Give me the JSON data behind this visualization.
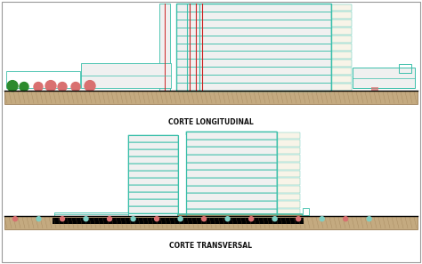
{
  "bg_color": "#f5f4f1",
  "border_color": "#999999",
  "title1": "CORTE LONGITUDINAL",
  "title2": "CORTE TRANSVERSAL",
  "title_fontsize": 5.5,
  "title_color": "#111111",
  "outer_bg": "#ffffff",
  "teal": "#3bbfaa",
  "light_teal": "#7ecfc4",
  "pink": "#d97070",
  "light_pink": "#f0b0a0",
  "red": "#cc2222",
  "green_tree": "#2d8a2d",
  "dark_green": "#1a5a1a",
  "brown": "#8B6914",
  "ground_color": "#c4aa80",
  "dark_ground": "#8a6a40",
  "window_color": "#c8e8e4",
  "wall_color": "#f0f0f0",
  "wall_color2": "#e4e4e4",
  "black": "#000000",
  "gray": "#999999",
  "light_gray": "#cccccc",
  "cream": "#f8f4e8",
  "dark_teal": "#258a78"
}
